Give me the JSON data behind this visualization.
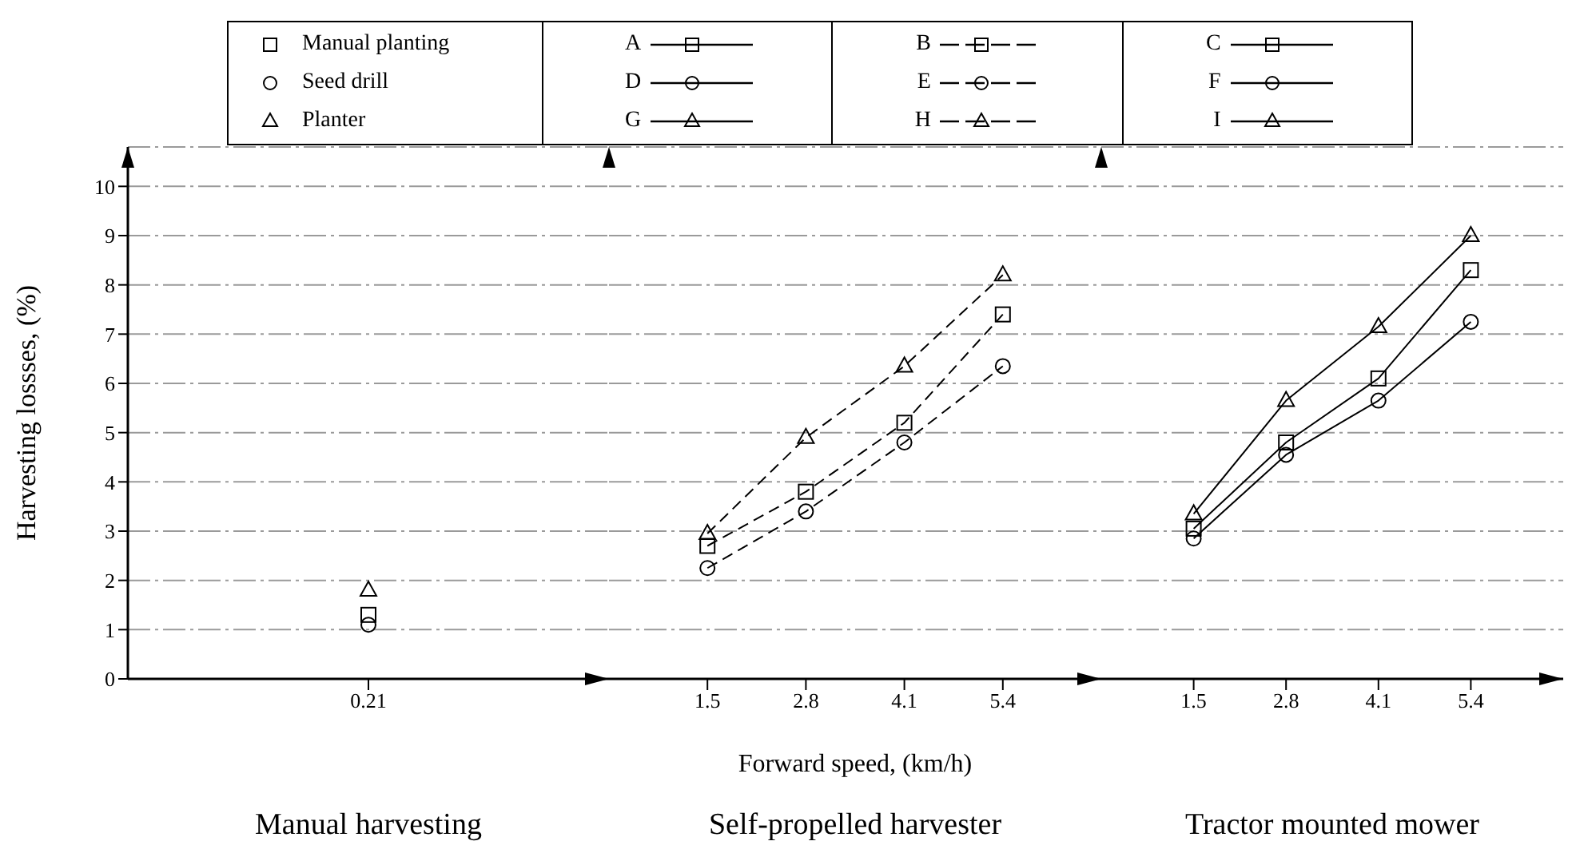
{
  "chart_data": [
    {
      "type": "scatter",
      "title": "Manual harvesting",
      "ylabel": "Harvesting lossses, (%)",
      "categories": [
        "0.21"
      ],
      "annotations": [
        "Manual planting",
        "Seed drill",
        "Planter"
      ],
      "ylim": [
        0,
        10.8
      ],
      "yticks": [
        0,
        1,
        2,
        3,
        4,
        5,
        6,
        7,
        8,
        9,
        10
      ],
      "grid": "y",
      "legend": "top",
      "series": [
        {
          "name": "A",
          "color": "#000000",
          "marker": "square",
          "line_style": "solid",
          "values": [
            1.3
          ]
        },
        {
          "name": "D",
          "color": "#000000",
          "marker": "circle",
          "line_style": "solid",
          "values": [
            1.1
          ]
        },
        {
          "name": "G",
          "color": "#000000",
          "marker": "triangle",
          "line_style": "solid",
          "values": [
            1.8
          ]
        }
      ]
    },
    {
      "type": "line",
      "title": "Self-propelled harvester",
      "xlabel": "Forward speed, (km/h)",
      "categories": [
        "1.5",
        "2.8",
        "4.1",
        "5.4"
      ],
      "ylim": [
        0,
        10.8
      ],
      "yticks": [
        0,
        1,
        2,
        3,
        4,
        5,
        6,
        7,
        8,
        9,
        10
      ],
      "tick_labels": "x",
      "grid": "y",
      "legend": "top",
      "series": [
        {
          "name": "B",
          "color": "#000000",
          "marker": "square",
          "line_style": "dashed",
          "values": [
            2.7,
            3.8,
            5.2,
            7.4
          ]
        },
        {
          "name": "E",
          "color": "#000000",
          "marker": "circle",
          "line_style": "dashed",
          "values": [
            2.25,
            3.4,
            4.8,
            6.35
          ]
        },
        {
          "name": "H",
          "color": "#000000",
          "marker": "triangle",
          "line_style": "dashed",
          "values": [
            2.95,
            4.9,
            6.35,
            8.2
          ]
        }
      ]
    },
    {
      "type": "line",
      "title": "Tractor mounted mower",
      "categories": [
        "1.5",
        "2.8",
        "4.1",
        "5.4"
      ],
      "ylim": [
        0,
        10.8
      ],
      "yticks": [
        0,
        1,
        2,
        3,
        4,
        5,
        6,
        7,
        8,
        9,
        10
      ],
      "tick_labels": "x",
      "grid": "y",
      "legend": "top",
      "series": [
        {
          "name": "C",
          "color": "#000000",
          "marker": "square",
          "line_style": "solid",
          "values": [
            3.05,
            4.8,
            6.1,
            8.3
          ]
        },
        {
          "name": "F",
          "color": "#000000",
          "marker": "circle",
          "line_style": "solid",
          "values": [
            2.85,
            4.55,
            5.65,
            7.25
          ]
        },
        {
          "name": "I",
          "color": "#000000",
          "marker": "triangle",
          "line_style": "solid",
          "values": [
            3.35,
            5.65,
            7.15,
            9.0
          ]
        }
      ]
    }
  ]
}
